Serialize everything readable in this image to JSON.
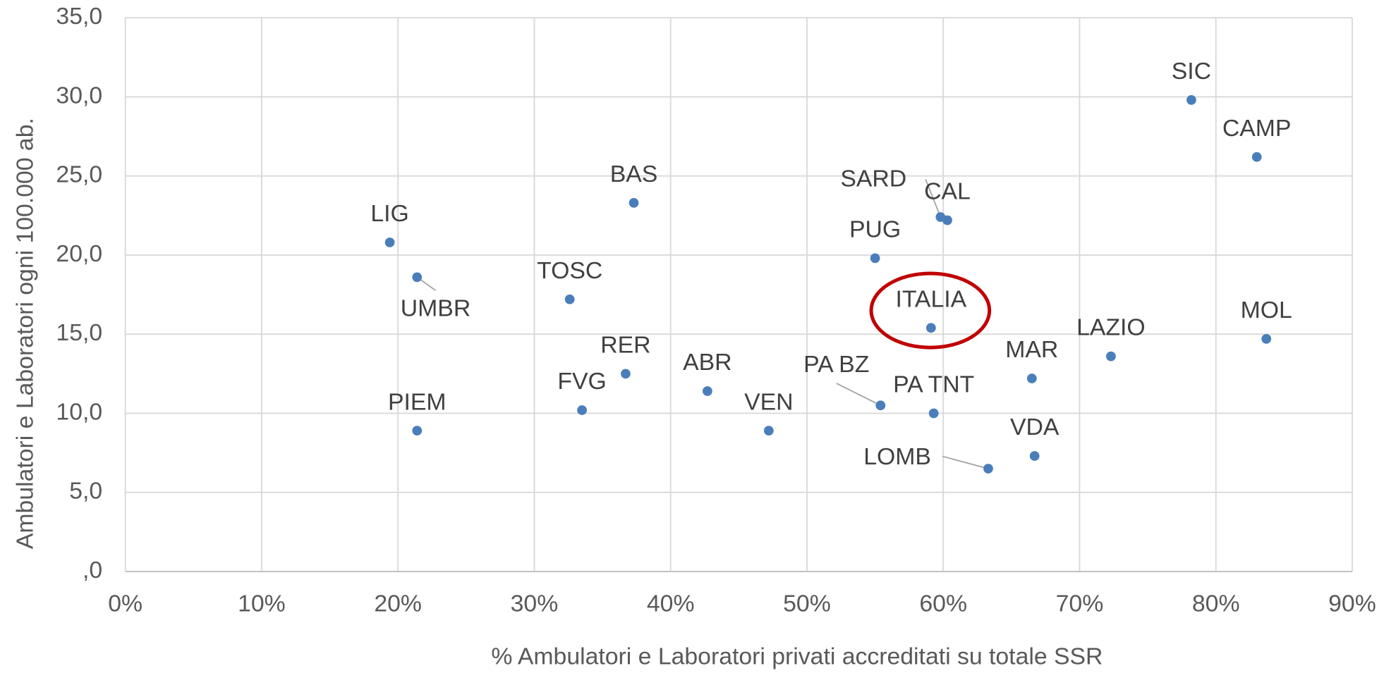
{
  "chart_data": {
    "type": "scatter",
    "xlabel": "% Ambulatori e Laboratori privati accreditati su totale SSR",
    "ylabel": "Ambulatori e Laboratori ogni 100.000 ab.",
    "labels": [
      "SIC",
      "CAMP",
      "MOL",
      "LAZIO",
      "MAR",
      "VDA",
      "LOMB",
      "ITALIA",
      "PA TNT",
      "PA BZ",
      "SARD",
      "CAL",
      "PUG",
      "VEN",
      "ABR",
      "RER",
      "FVG",
      "TOSC",
      "BAS",
      "LIG",
      "UMBR",
      "PIEM"
    ],
    "x": [
      78.2,
      83.0,
      83.7,
      72.3,
      66.5,
      66.7,
      63.3,
      59.1,
      59.3,
      55.4,
      59.8,
      60.3,
      55.0,
      47.2,
      42.7,
      36.7,
      33.5,
      32.6,
      37.3,
      19.4,
      21.4,
      21.4
    ],
    "values": [
      29.8,
      26.2,
      14.7,
      13.6,
      12.2,
      7.3,
      6.5,
      15.4,
      10.0,
      10.5,
      22.4,
      22.2,
      19.8,
      8.9,
      11.4,
      12.5,
      10.2,
      17.2,
      23.3,
      20.8,
      18.6,
      8.9
    ],
    "color": "#4a7ebb",
    "xlim": [
      0,
      90
    ],
    "xticks": [
      {
        "value": 0,
        "label": "0%"
      },
      {
        "value": 10,
        "label": "10%"
      },
      {
        "value": 20,
        "label": "20%"
      },
      {
        "value": 30,
        "label": "30%"
      },
      {
        "value": 40,
        "label": "40%"
      },
      {
        "value": 50,
        "label": "50%"
      },
      {
        "value": 60,
        "label": "60%"
      },
      {
        "value": 70,
        "label": "70%"
      },
      {
        "value": 80,
        "label": "80%"
      },
      {
        "value": 90,
        "label": "90%"
      }
    ],
    "ylim": [
      0,
      35
    ],
    "yticks": [
      {
        "value": 0,
        "label": ",0"
      },
      {
        "value": 5,
        "label": "5,0"
      },
      {
        "value": 10,
        "label": "10,0"
      },
      {
        "value": 15,
        "label": "15,0"
      },
      {
        "value": 20,
        "label": "20,0"
      },
      {
        "value": 25,
        "label": "25,0"
      },
      {
        "value": 30,
        "label": "30,0"
      },
      {
        "value": 35,
        "label": "35,0"
      }
    ],
    "grid": true
  }
}
